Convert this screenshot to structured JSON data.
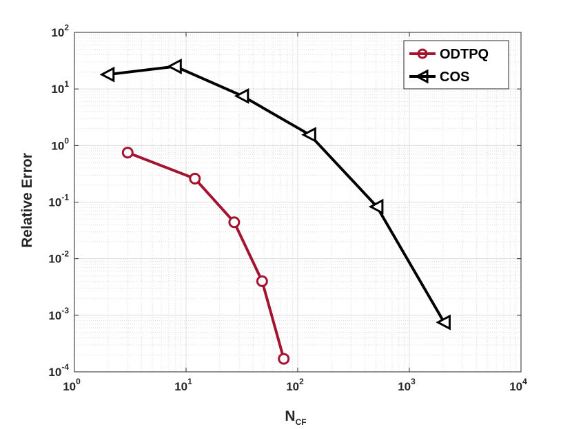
{
  "chart_data": {
    "type": "line",
    "xscale": "log",
    "yscale": "log",
    "xlim": [
      1,
      10000
    ],
    "ylim": [
      0.0001,
      100
    ],
    "xticks": [
      {
        "value": 1,
        "base": "10",
        "exp": "0"
      },
      {
        "value": 10,
        "base": "10",
        "exp": "1"
      },
      {
        "value": 100,
        "base": "10",
        "exp": "2"
      },
      {
        "value": 1000,
        "base": "10",
        "exp": "3"
      },
      {
        "value": 10000,
        "base": "10",
        "exp": "4"
      }
    ],
    "yticks": [
      {
        "value": 0.0001,
        "base": "10",
        "exp": "-4"
      },
      {
        "value": 0.001,
        "base": "10",
        "exp": "-3"
      },
      {
        "value": 0.01,
        "base": "10",
        "exp": "-2"
      },
      {
        "value": 0.1,
        "base": "10",
        "exp": "-1"
      },
      {
        "value": 1,
        "base": "10",
        "exp": "0"
      },
      {
        "value": 10,
        "base": "10",
        "exp": "1"
      },
      {
        "value": 100,
        "base": "10",
        "exp": "2"
      }
    ],
    "xlabel": {
      "main": "N",
      "sub": "CF"
    },
    "ylabel": "Relative Error",
    "grid": true,
    "minor_grid": true,
    "legend_position": "top-right",
    "series": [
      {
        "name": "ODTPQ",
        "color": "#a2142f",
        "marker": "circle",
        "x": [
          3,
          12,
          27,
          48,
          75
        ],
        "y": [
          0.75,
          0.26,
          0.044,
          0.004,
          0.00017
        ]
      },
      {
        "name": "COS",
        "color": "#000000",
        "marker": "triangle-left",
        "x": [
          2,
          8,
          32,
          128,
          512,
          2048
        ],
        "y": [
          18,
          25,
          7.5,
          1.55,
          0.083,
          0.00075
        ]
      }
    ]
  }
}
